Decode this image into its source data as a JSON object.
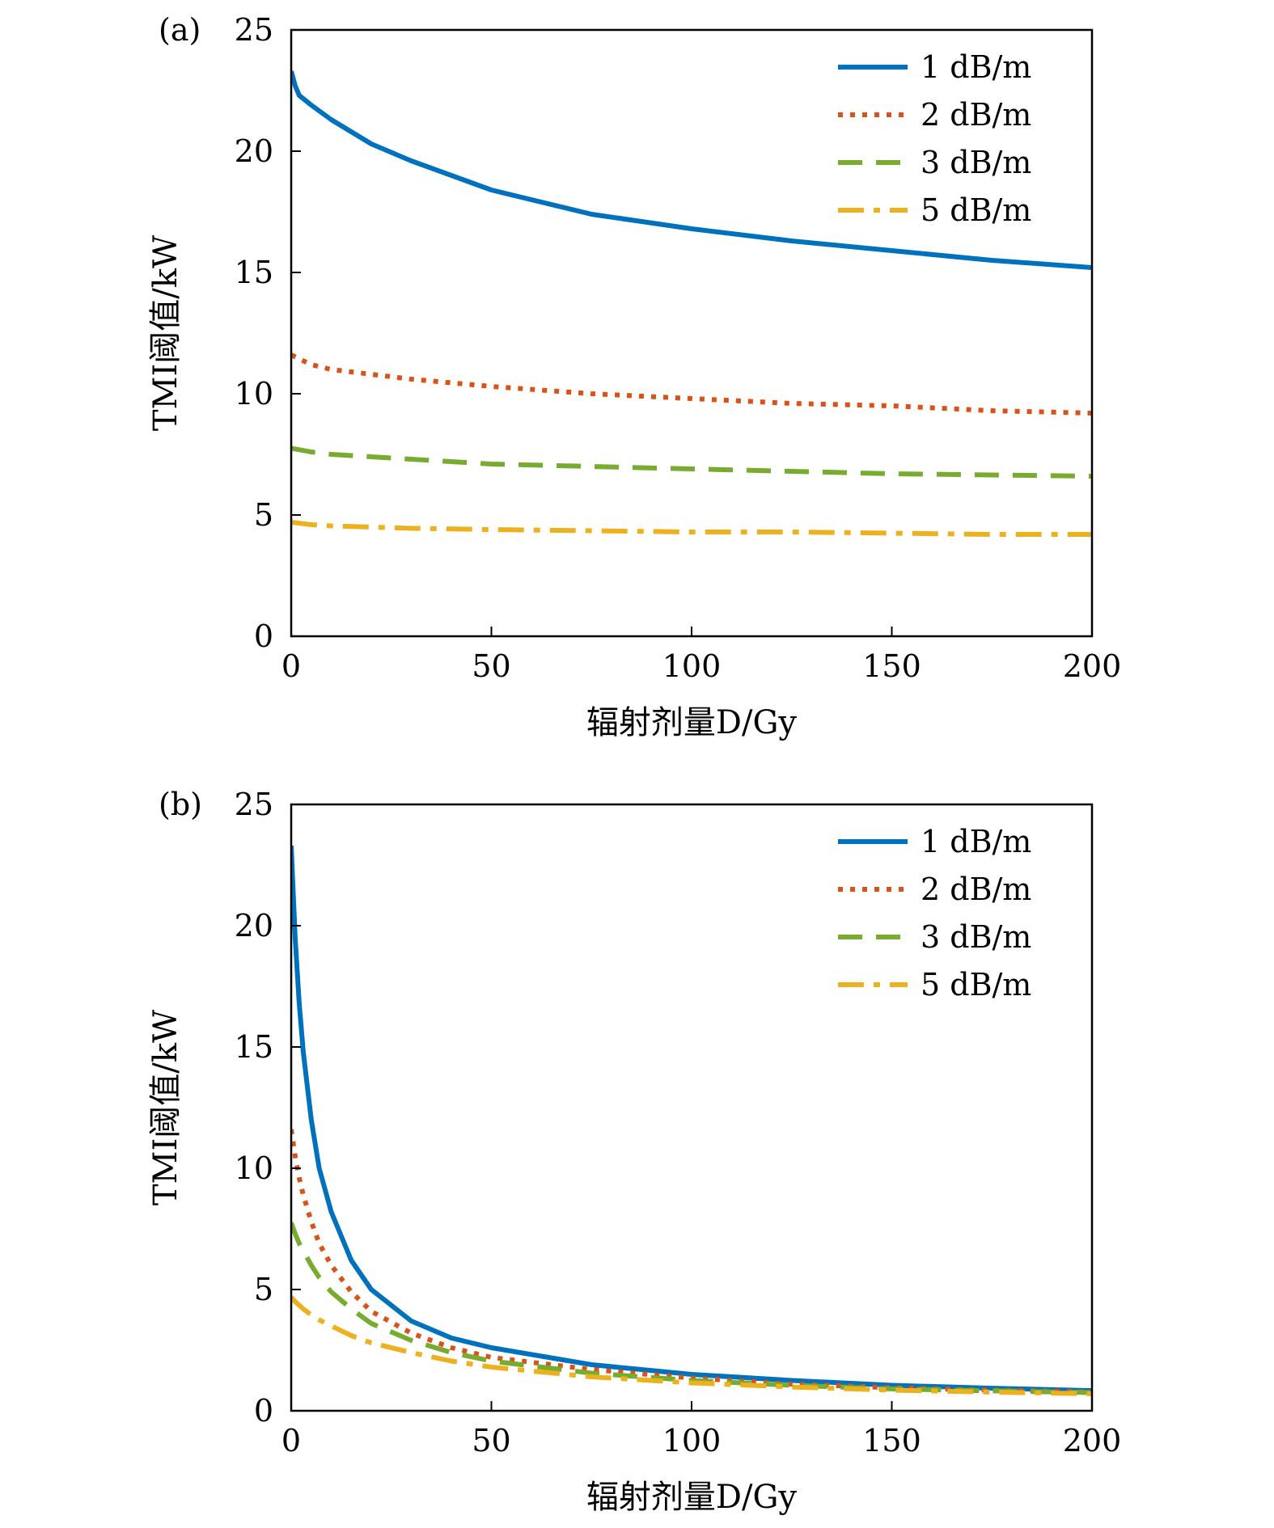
{
  "chart_data": [
    {
      "type": "line",
      "panel_label": "(a)",
      "xlabel": "辐射剂量D/Gy",
      "ylabel": "TMI阈值/kW",
      "xlim": [
        0,
        200
      ],
      "ylim": [
        0,
        25
      ],
      "xticks": [
        0,
        50,
        100,
        150,
        200
      ],
      "yticks": [
        0,
        5,
        10,
        15,
        20,
        25
      ],
      "grid": false,
      "legend_position": "top-right",
      "series": [
        {
          "name": "1 dB/m",
          "color": "#0072BD",
          "dash": "solid",
          "x": [
            0,
            1,
            2,
            5,
            10,
            20,
            30,
            50,
            75,
            100,
            125,
            150,
            175,
            200
          ],
          "y": [
            23.3,
            22.7,
            22.3,
            21.9,
            21.3,
            20.3,
            19.6,
            18.4,
            17.4,
            16.8,
            16.3,
            15.9,
            15.5,
            15.2
          ]
        },
        {
          "name": "2 dB/m",
          "color": "#D95319",
          "dash": "dotted",
          "x": [
            0,
            5,
            10,
            20,
            30,
            50,
            75,
            100,
            125,
            150,
            175,
            200
          ],
          "y": [
            11.6,
            11.2,
            11.0,
            10.8,
            10.6,
            10.3,
            10.0,
            9.8,
            9.6,
            9.5,
            9.3,
            9.2
          ]
        },
        {
          "name": "3 dB/m",
          "color": "#77AC30",
          "dash": "dashed",
          "x": [
            0,
            5,
            10,
            20,
            30,
            50,
            75,
            100,
            125,
            150,
            175,
            200
          ],
          "y": [
            7.75,
            7.6,
            7.5,
            7.4,
            7.3,
            7.1,
            7.0,
            6.9,
            6.8,
            6.7,
            6.65,
            6.6
          ]
        },
        {
          "name": "5 dB/m",
          "color": "#EDB120",
          "dash": "dashdot",
          "x": [
            0,
            5,
            10,
            20,
            30,
            50,
            75,
            100,
            125,
            150,
            175,
            200
          ],
          "y": [
            4.7,
            4.6,
            4.55,
            4.5,
            4.45,
            4.4,
            4.35,
            4.3,
            4.3,
            4.25,
            4.2,
            4.2
          ]
        }
      ]
    },
    {
      "type": "line",
      "panel_label": "(b)",
      "xlabel": "辐射剂量D/Gy",
      "ylabel": "TMI阈值/kW",
      "xlim": [
        0,
        200
      ],
      "ylim": [
        0,
        25
      ],
      "xticks": [
        0,
        50,
        100,
        150,
        200
      ],
      "yticks": [
        0,
        5,
        10,
        15,
        20,
        25
      ],
      "grid": false,
      "legend_position": "top-right",
      "series": [
        {
          "name": "1 dB/m",
          "color": "#0072BD",
          "dash": "solid",
          "x": [
            0,
            1,
            2,
            3,
            5,
            7,
            10,
            15,
            20,
            30,
            40,
            50,
            75,
            100,
            125,
            150,
            175,
            200
          ],
          "y": [
            23.3,
            19.5,
            16.8,
            14.8,
            12.0,
            10.0,
            8.2,
            6.2,
            5.0,
            3.7,
            3.0,
            2.6,
            1.9,
            1.5,
            1.25,
            1.05,
            0.93,
            0.83
          ]
        },
        {
          "name": "2 dB/m",
          "color": "#D95319",
          "dash": "dotted",
          "x": [
            0,
            1,
            2,
            3,
            5,
            7,
            10,
            15,
            20,
            30,
            40,
            50,
            75,
            100,
            125,
            150,
            175,
            200
          ],
          "y": [
            11.6,
            10.5,
            9.6,
            8.9,
            7.8,
            6.9,
            6.0,
            4.9,
            4.1,
            3.2,
            2.6,
            2.2,
            1.7,
            1.35,
            1.1,
            0.95,
            0.85,
            0.78
          ]
        },
        {
          "name": "3 dB/m",
          "color": "#77AC30",
          "dash": "dashed",
          "x": [
            0,
            1,
            2,
            3,
            5,
            7,
            10,
            15,
            20,
            30,
            40,
            50,
            75,
            100,
            125,
            150,
            175,
            200
          ],
          "y": [
            7.75,
            7.3,
            6.9,
            6.6,
            6.0,
            5.5,
            4.9,
            4.2,
            3.6,
            2.9,
            2.4,
            2.05,
            1.55,
            1.25,
            1.05,
            0.9,
            0.82,
            0.75
          ]
        },
        {
          "name": "5 dB/m",
          "color": "#EDB120",
          "dash": "dashdot",
          "x": [
            0,
            1,
            2,
            3,
            5,
            7,
            10,
            15,
            20,
            30,
            40,
            50,
            75,
            100,
            125,
            150,
            175,
            200
          ],
          "y": [
            4.7,
            4.5,
            4.35,
            4.2,
            3.95,
            3.75,
            3.5,
            3.1,
            2.8,
            2.4,
            2.05,
            1.8,
            1.4,
            1.15,
            0.98,
            0.85,
            0.77,
            0.7
          ]
        }
      ]
    }
  ]
}
